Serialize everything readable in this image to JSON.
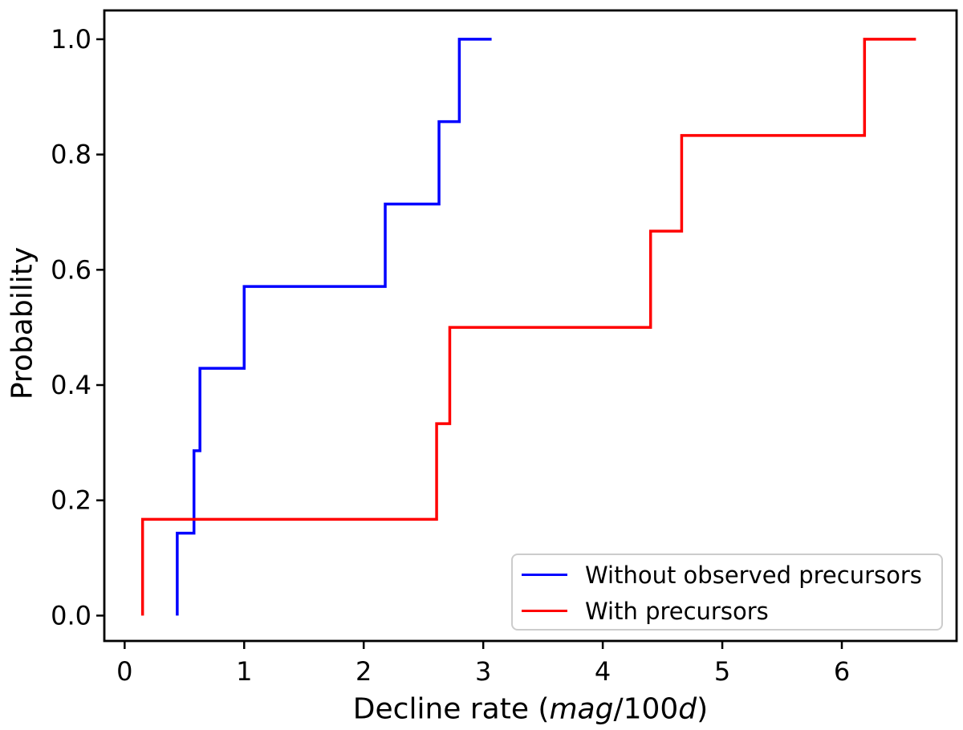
{
  "ylabel": "Probability",
  "xlabel": {
    "prefix": "Decline rate (",
    "italic1": "mag",
    "mid": "/100",
    "italic2": "d",
    "suffix": ")"
  },
  "legend": {
    "entries": [
      {
        "label": "Without observed precursors",
        "color": "#0000ff"
      },
      {
        "label": "With precursors",
        "color": "#ff0000"
      }
    ]
  },
  "chart_data": {
    "type": "line",
    "subtype": "step-ecdf",
    "title": "",
    "xlabel": "Decline rate (mag/100d)",
    "ylabel": "Probability",
    "xlim": [
      -0.17,
      6.96
    ],
    "ylim": [
      -0.044,
      1.05
    ],
    "grid": false,
    "legend_position": "lower right",
    "xticks": {
      "values": [
        0,
        1,
        2,
        3,
        4,
        5,
        6
      ],
      "labels": [
        "0",
        "1",
        "2",
        "3",
        "4",
        "5",
        "6"
      ]
    },
    "yticks": {
      "values": [
        0.0,
        0.2,
        0.4,
        0.6,
        0.8,
        1.0
      ],
      "labels": [
        "0.0",
        "0.2",
        "0.4",
        "0.6",
        "0.8",
        "1.0"
      ]
    },
    "series": [
      {
        "key": "without-observed-precursors",
        "name": "Without observed precursors",
        "color": "#0000ff",
        "step_x": [
          0.44,
          0.58,
          0.63,
          1.0,
          2.18,
          2.63,
          2.8
        ],
        "cum_prob": [
          0.143,
          0.286,
          0.429,
          0.571,
          0.714,
          0.857,
          1.0
        ],
        "y_start": 0.0,
        "x_end": 3.07
      },
      {
        "key": "with-precursors",
        "name": "With precursors",
        "color": "#ff0000",
        "step_x": [
          0.15,
          2.61,
          2.72,
          4.4,
          4.66,
          6.19
        ],
        "cum_prob": [
          0.167,
          0.333,
          0.5,
          0.667,
          0.833,
          1.0
        ],
        "y_start": 0.0,
        "x_end": 6.62
      }
    ]
  }
}
